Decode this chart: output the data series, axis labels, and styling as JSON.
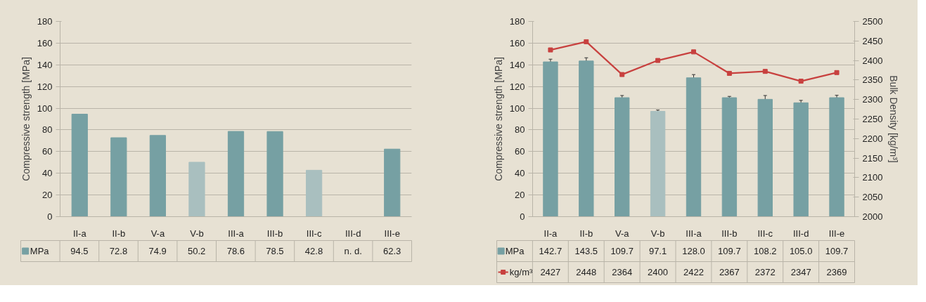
{
  "chart_data": [
    {
      "type": "bar",
      "ylabel": "Compressive strength [MPa]",
      "categories": [
        "II-a",
        "II-b",
        "V-a",
        "V-b",
        "III-a",
        "III-b",
        "III-c",
        "III-d",
        "III-e"
      ],
      "ylim": [
        0,
        180
      ],
      "yticks": [
        0,
        20,
        40,
        60,
        80,
        100,
        120,
        140,
        160,
        180
      ],
      "grid": "y",
      "legend": "bottom left",
      "series": [
        {
          "name": "MPa",
          "colors": [
            "#76a0a3",
            "#76a0a3",
            "#76a0a3",
            "#a9bfbf",
            "#76a0a3",
            "#76a0a3",
            "#a9bfbf",
            "#76a0a3",
            "#76a0a3"
          ],
          "values": [
            94.5,
            72.8,
            74.9,
            50.2,
            78.6,
            78.5,
            42.8,
            null,
            62.3
          ],
          "value_labels": [
            "94.5",
            "72.8",
            "74.9",
            "50.2",
            "78.6",
            "78.5",
            "42.8",
            "n. d.",
            "62.3"
          ]
        }
      ]
    },
    {
      "type": "bar",
      "ylabel": "Compressive strength [MPa]",
      "y2label": "Bulk Density [kg/m³]",
      "categories": [
        "II-a",
        "II-b",
        "V-a",
        "V-b",
        "III-a",
        "III-b",
        "III-c",
        "III-d",
        "III-e"
      ],
      "ylim": [
        0,
        180
      ],
      "yticks": [
        0,
        20,
        40,
        60,
        80,
        100,
        120,
        140,
        160,
        180
      ],
      "y2lim": [
        2000,
        2500
      ],
      "y2ticks": [
        2000,
        2050,
        2100,
        2150,
        2200,
        2250,
        2300,
        2350,
        2400,
        2450,
        2500
      ],
      "grid": "y",
      "legend": "bottom left",
      "data_labels": true,
      "series": [
        {
          "name": "MPa",
          "type": "bar",
          "colors": [
            "#76a0a3",
            "#76a0a3",
            "#76a0a3",
            "#a9bfbf",
            "#76a0a3",
            "#76a0a3",
            "#76a0a3",
            "#76a0a3",
            "#76a0a3"
          ],
          "values": [
            142.7,
            143.5,
            109.7,
            97.1,
            128.0,
            109.7,
            108.2,
            105.0,
            109.7
          ],
          "errors": [
            2.5,
            3,
            2,
            1.2,
            3,
            1.2,
            3.5,
            2.2,
            2.2
          ],
          "value_labels": [
            "142.7",
            "143.5",
            "109.7",
            "97.1",
            "128.0",
            "109.7",
            "108.2",
            "105.0",
            "109.7"
          ]
        },
        {
          "name": "kg/m³",
          "type": "line",
          "axis": "y2",
          "marker": "square",
          "color": "#c8413f",
          "values": [
            2427,
            2448,
            2364,
            2400,
            2422,
            2367,
            2372,
            2347,
            2369
          ]
        }
      ]
    }
  ]
}
